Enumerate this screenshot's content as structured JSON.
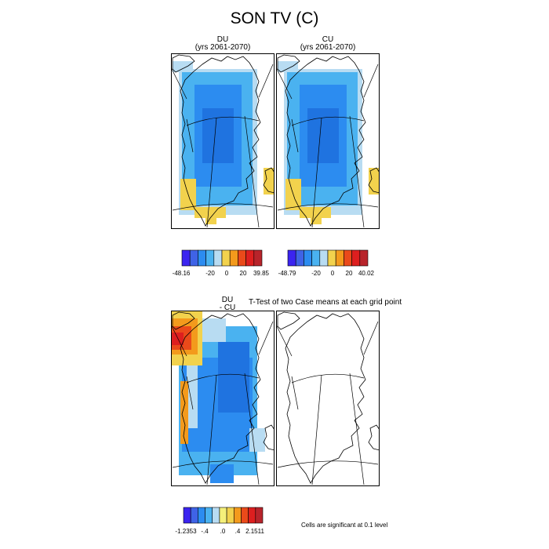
{
  "figure": {
    "title": "SON TV (C)"
  },
  "panels": [
    {
      "id": "du",
      "line1": "DU",
      "line2": "(yrs 2061-2070)"
    },
    {
      "id": "cu",
      "line1": "CU",
      "line2": "(yrs 2061-2070)"
    },
    {
      "id": "diff",
      "line1": "DU",
      "line2": "- CU"
    },
    {
      "id": "ttest",
      "line1": "T-Test of two Case means at each grid point"
    }
  ],
  "colorbars": [
    {
      "id": "du",
      "labels": [
        "-48.16",
        "-20",
        "0",
        "20",
        "39.85"
      ]
    },
    {
      "id": "cu",
      "labels": [
        "-48.79",
        "-20",
        "0",
        "20",
        "40.02"
      ]
    },
    {
      "id": "diff",
      "labels": [
        "-1.2353",
        "-.4",
        ".0",
        ".4",
        "2.1511"
      ]
    }
  ],
  "colorbar_colors": [
    "#3b24f0",
    "#3f63e6",
    "#2c8cf0",
    "#4ab2f0",
    "#b8dcf2",
    "#f2d24d",
    "#f39a1c",
    "#ea4a1a",
    "#dd1f1f",
    "#b8242b"
  ],
  "diff_colorbar_colors": [
    "#3b24f0",
    "#3f63e6",
    "#2c8cf0",
    "#4ab2f0",
    "#b8dcf2",
    "#f5f07a",
    "#f2d24d",
    "#f39a1c",
    "#ea4a1a",
    "#dd1f1f",
    "#b8242b"
  ],
  "note": "Cells are significant at 0.1 level"
}
